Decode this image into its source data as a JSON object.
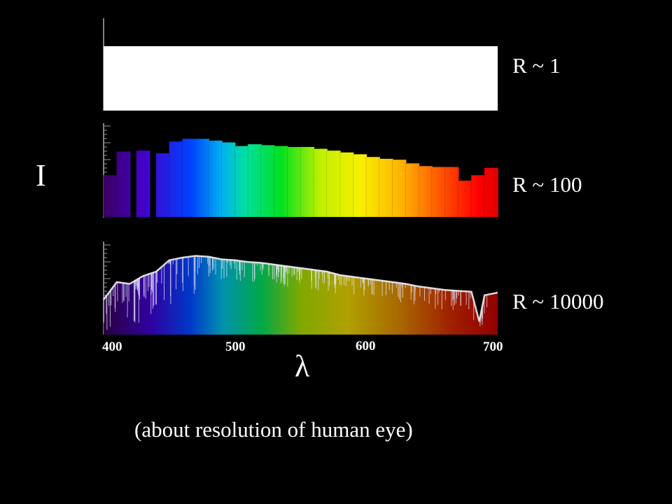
{
  "chart_data": [
    {
      "type": "bar",
      "panel": "low",
      "label": "R ~ 1",
      "x_range": [
        400,
        700
      ],
      "values": [
        1.0
      ]
    },
    {
      "type": "bar",
      "panel": "medium",
      "label": "R ~ 100",
      "x_range": [
        400,
        700
      ],
      "x": [
        405,
        415,
        430,
        445,
        455,
        465,
        475,
        485,
        495,
        505,
        515,
        525,
        535,
        545,
        555,
        565,
        575,
        585,
        595,
        605,
        615,
        625,
        635,
        645,
        655,
        665,
        675,
        685,
        695
      ],
      "values": [
        0.46,
        0.72,
        0.73,
        0.7,
        0.83,
        0.86,
        0.86,
        0.84,
        0.82,
        0.78,
        0.8,
        0.79,
        0.78,
        0.77,
        0.77,
        0.75,
        0.73,
        0.71,
        0.69,
        0.66,
        0.64,
        0.63,
        0.59,
        0.56,
        0.55,
        0.55,
        0.4,
        0.46,
        0.54
      ]
    },
    {
      "type": "area",
      "panel": "high",
      "label": "R ~ 10000",
      "x_range": [
        400,
        700
      ],
      "x": [
        400,
        410,
        420,
        430,
        440,
        450,
        460,
        470,
        480,
        490,
        500,
        510,
        520,
        530,
        540,
        550,
        560,
        570,
        580,
        590,
        600,
        610,
        620,
        630,
        640,
        650,
        660,
        670,
        680,
        686,
        690,
        700
      ],
      "values": [
        0.4,
        0.6,
        0.58,
        0.67,
        0.72,
        0.85,
        0.88,
        0.9,
        0.89,
        0.86,
        0.85,
        0.83,
        0.82,
        0.8,
        0.78,
        0.76,
        0.74,
        0.72,
        0.68,
        0.66,
        0.64,
        0.62,
        0.6,
        0.58,
        0.55,
        0.53,
        0.51,
        0.5,
        0.49,
        0.15,
        0.45,
        0.48
      ]
    }
  ],
  "x_ticks": [
    "400",
    "500",
    "600",
    "700"
  ],
  "ylabel": "I",
  "xlabel": "λ",
  "caption": "(about resolution of human eye)"
}
